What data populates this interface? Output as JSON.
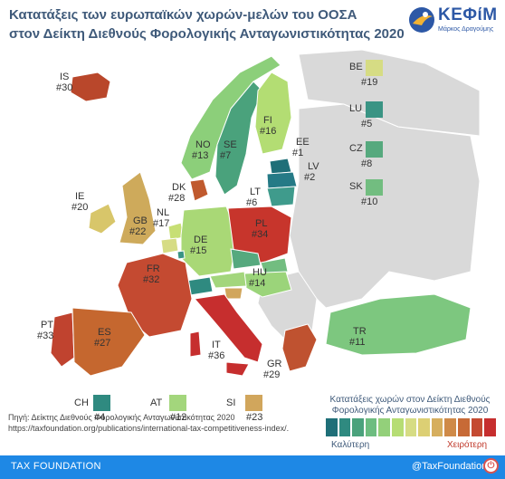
{
  "title": {
    "line1": "Κατατάξεις των ευρωπαϊκών χωρών-μελών του ΟΟΣΑ",
    "line2": "στον Δείκτη Διεθνούς Φορολογικής Ανταγωνιστικότητας 2020"
  },
  "logo": {
    "name": "ΚΕΦίΜ",
    "sub": "Μάρκος Δραγούμης"
  },
  "countries": [
    {
      "code": "IS",
      "rank": "#30",
      "color": "#b9472b"
    },
    {
      "code": "NO",
      "rank": "#13",
      "color": "#8ccf7a"
    },
    {
      "code": "SE",
      "rank": "#7",
      "color": "#4aa27c"
    },
    {
      "code": "FI",
      "rank": "#16",
      "color": "#b3dd73"
    },
    {
      "code": "EE",
      "rank": "#1",
      "color": "#1f6f78"
    },
    {
      "code": "LV",
      "rank": "#2",
      "color": "#257a86"
    },
    {
      "code": "LT",
      "rank": "#6",
      "color": "#3f9b8c"
    },
    {
      "code": "DK",
      "rank": "#28",
      "color": "#c05a2e"
    },
    {
      "code": "IE",
      "rank": "#20",
      "color": "#d8c66a"
    },
    {
      "code": "GB",
      "rank": "#22",
      "color": "#ceaa5b"
    },
    {
      "code": "NL",
      "rank": "#17",
      "color": "#c7df74"
    },
    {
      "code": "DE",
      "rank": "#15",
      "color": "#a9d876"
    },
    {
      "code": "PL",
      "rank": "#34",
      "color": "#c7352c"
    },
    {
      "code": "FR",
      "rank": "#32",
      "color": "#c44a31"
    },
    {
      "code": "HU",
      "rank": "#14",
      "color": "#9bd47a"
    },
    {
      "code": "PT",
      "rank": "#33",
      "color": "#c0432f"
    },
    {
      "code": "ES",
      "rank": "#27",
      "color": "#c5672f"
    },
    {
      "code": "IT",
      "rank": "#36",
      "color": "#c62e2e"
    },
    {
      "code": "GR",
      "rank": "#29",
      "color": "#bf5230"
    },
    {
      "code": "TR",
      "rank": "#11",
      "color": "#7dc77f"
    }
  ],
  "legend_right": [
    {
      "code": "BE",
      "rank": "#19",
      "color": "#d6dc84"
    },
    {
      "code": "LU",
      "rank": "#5",
      "color": "#3a9484"
    },
    {
      "code": "CZ",
      "rank": "#8",
      "color": "#56a97e"
    },
    {
      "code": "SK",
      "rank": "#10",
      "color": "#72bd80"
    }
  ],
  "legend_bottom": [
    {
      "code": "CH",
      "rank": "#4",
      "color": "#2f8a80"
    },
    {
      "code": "AT",
      "rank": "#12",
      "color": "#a3d67c"
    },
    {
      "code": "SI",
      "rank": "#23",
      "color": "#d1a65c"
    }
  ],
  "scale": {
    "title1": "Κατατάξεις χωρών στον Δείκτη Διεθνούς",
    "title2": "Φορολογικής Ανταγωνιστικότητας 2020",
    "better": "Καλύτερη",
    "worse": "Χειρότερη",
    "colors": [
      "#1f6f78",
      "#2f8a80",
      "#4aa27c",
      "#6dbd80",
      "#93d07a",
      "#b6dd74",
      "#d6dc84",
      "#dccf74",
      "#d6ae5e",
      "#cf8a48",
      "#c76a36",
      "#c44a31",
      "#c62e2e"
    ]
  },
  "source": {
    "line1": "Πηγή: Δείκτης Διεθνούς Φορολογικής Ανταγωνιστικότητας 2020",
    "line2": "https://taxfoundation.org/publications/international-tax-competitiveness-index/."
  },
  "footer": {
    "left": "TAX FOUNDATION",
    "right": "@TaxFoundation"
  },
  "non_oecd_color": "#d9d9d9"
}
